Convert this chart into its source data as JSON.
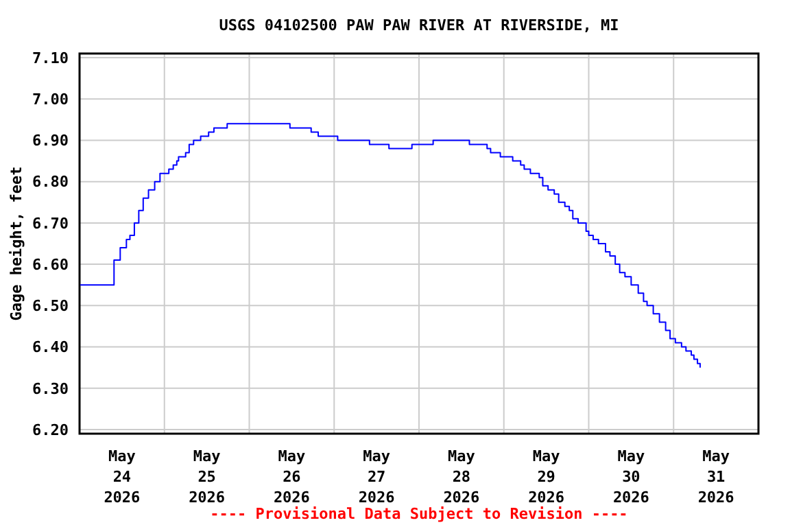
{
  "chart_data": {
    "type": "step",
    "title": "USGS 04102500 PAW PAW RIVER AT RIVERSIDE, MI",
    "ylabel": "Gage height, feet",
    "annotations": [
      "---- Provisional Data Subject to Revision ----"
    ],
    "x": [
      "2026-05-24T00:00",
      "2026-05-24T09:30",
      "2026-05-24T09:45",
      "2026-05-24T11:30",
      "2026-05-24T13:15",
      "2026-05-24T14:15",
      "2026-05-24T15:30",
      "2026-05-24T16:45",
      "2026-05-24T18:00",
      "2026-05-24T19:30",
      "2026-05-24T21:15",
      "2026-05-24T22:45",
      "2026-05-25T01:15",
      "2026-05-25T02:30",
      "2026-05-25T03:30",
      "2026-05-25T04:00",
      "2026-05-25T06:00",
      "2026-05-25T07:00",
      "2026-05-25T08:15",
      "2026-05-25T10:15",
      "2026-05-25T12:30",
      "2026-05-25T14:00",
      "2026-05-25T17:45",
      "2026-05-26T11:30",
      "2026-05-26T17:30",
      "2026-05-26T19:30",
      "2026-05-27T01:00",
      "2026-05-27T10:00",
      "2026-05-27T15:30",
      "2026-05-27T22:00",
      "2026-05-28T04:00",
      "2026-05-28T14:15",
      "2026-05-28T19:15",
      "2026-05-28T20:15",
      "2026-05-28T23:00",
      "2026-05-29T02:30",
      "2026-05-29T04:45",
      "2026-05-29T05:45",
      "2026-05-29T07:30",
      "2026-05-29T10:00",
      "2026-05-29T11:00",
      "2026-05-29T12:30",
      "2026-05-29T14:15",
      "2026-05-29T15:30",
      "2026-05-29T17:15",
      "2026-05-29T18:30",
      "2026-05-29T19:30",
      "2026-05-29T21:00",
      "2026-05-29T23:15",
      "2026-05-30T00:00",
      "2026-05-30T01:15",
      "2026-05-30T02:45",
      "2026-05-30T04:45",
      "2026-05-30T06:00",
      "2026-05-30T07:30",
      "2026-05-30T08:45",
      "2026-05-30T10:15",
      "2026-05-30T12:00",
      "2026-05-30T14:00",
      "2026-05-30T15:30",
      "2026-05-30T16:30",
      "2026-05-30T18:15",
      "2026-05-30T20:00",
      "2026-05-30T21:45",
      "2026-05-30T23:00",
      "2026-05-31T00:30",
      "2026-05-31T02:15",
      "2026-05-31T03:30",
      "2026-05-31T05:00",
      "2026-05-31T05:45",
      "2026-05-31T06:45",
      "2026-05-31T07:30"
    ],
    "series": [
      {
        "color": "#0000ff",
        "values": [
          6.55,
          6.55,
          6.61,
          6.64,
          6.66,
          6.67,
          6.7,
          6.73,
          6.76,
          6.78,
          6.8,
          6.82,
          6.83,
          6.84,
          6.85,
          6.86,
          6.87,
          6.89,
          6.9,
          6.91,
          6.92,
          6.93,
          6.94,
          6.93,
          6.92,
          6.91,
          6.9,
          6.89,
          6.88,
          6.89,
          6.9,
          6.89,
          6.88,
          6.87,
          6.86,
          6.85,
          6.84,
          6.83,
          6.82,
          6.81,
          6.79,
          6.78,
          6.77,
          6.75,
          6.74,
          6.73,
          6.71,
          6.7,
          6.68,
          6.67,
          6.66,
          6.65,
          6.63,
          6.62,
          6.6,
          6.58,
          6.57,
          6.55,
          6.53,
          6.51,
          6.5,
          6.48,
          6.46,
          6.44,
          6.42,
          6.41,
          6.4,
          6.39,
          6.38,
          6.37,
          6.36,
          6.35
        ]
      }
    ],
    "xlim": [
      "2026-05-24",
      "2026-06-01"
    ],
    "xticks": [
      {
        "value": "2026-05-24",
        "label": null
      },
      {
        "value": "2026-05-24T12:00",
        "label": "May\n24\n2026"
      },
      {
        "value": "2026-05-25",
        "label": null
      },
      {
        "value": "2026-05-25T12:00",
        "label": "May\n25\n2026"
      },
      {
        "value": "2026-05-26",
        "label": null
      },
      {
        "value": "2026-05-26T12:00",
        "label": "May\n26\n2026"
      },
      {
        "value": "2026-05-27",
        "label": null
      },
      {
        "value": "2026-05-27T12:00",
        "label": "May\n27\n2026"
      },
      {
        "value": "2026-05-28",
        "label": null
      },
      {
        "value": "2026-05-28T12:00",
        "label": "May\n28\n2026"
      },
      {
        "value": "2026-05-29",
        "label": null
      },
      {
        "value": "2026-05-29T12:00",
        "label": "May\n29\n2026"
      },
      {
        "value": "2026-05-30",
        "label": null
      },
      {
        "value": "2026-05-30T12:00",
        "label": "May\n30\n2026"
      },
      {
        "value": "2026-05-31",
        "label": null
      },
      {
        "value": "2026-05-31T12:00",
        "label": "May\n31\n2026"
      },
      {
        "value": "2026-06-01",
        "label": null
      }
    ],
    "ylim": [
      6.19,
      7.11
    ],
    "yticks": [
      {
        "value": 6.2,
        "label": "6.20"
      },
      {
        "value": 6.3,
        "label": "6.30"
      },
      {
        "value": 6.4,
        "label": "6.40"
      },
      {
        "value": 6.5,
        "label": "6.50"
      },
      {
        "value": 6.6,
        "label": "6.60"
      },
      {
        "value": 6.7,
        "label": "6.70"
      },
      {
        "value": 6.8,
        "label": "6.80"
      },
      {
        "value": 6.9,
        "label": "6.90"
      },
      {
        "value": 7.0,
        "label": "7.00"
      },
      {
        "value": 7.1,
        "label": "7.10"
      }
    ],
    "grid": true
  }
}
